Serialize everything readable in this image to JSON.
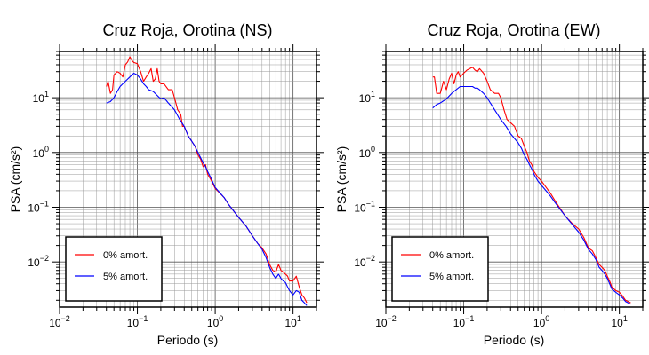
{
  "chart_data": [
    {
      "type": "line",
      "title": "Cruz Roja, Orotina (NS)",
      "xlabel": "Periodo (s)",
      "ylabel": "PSA (cm/s²)",
      "xscale": "log",
      "yscale": "log",
      "xlim": [
        0.01,
        20
      ],
      "ylim": [
        0.0015,
        70
      ],
      "grid": true,
      "legend_position": "lower-left",
      "x_ticks": [
        {
          "base": "10",
          "exp": "−2"
        },
        {
          "base": "10",
          "exp": "−1"
        },
        {
          "base": "10",
          "exp": "0"
        },
        {
          "base": "10",
          "exp": "1"
        }
      ],
      "y_ticks": [
        {
          "base": "10",
          "exp": "−2"
        },
        {
          "base": "10",
          "exp": "−1"
        },
        {
          "base": "10",
          "exp": "0"
        },
        {
          "base": "10",
          "exp": "1"
        }
      ],
      "series": [
        {
          "name": "0% amort.",
          "color": "#ff0000",
          "points": [
            [
              0.04,
              16
            ],
            [
              0.042,
              20
            ],
            [
              0.045,
              12
            ],
            [
              0.048,
              14
            ],
            [
              0.05,
              26
            ],
            [
              0.055,
              30
            ],
            [
              0.06,
              28
            ],
            [
              0.065,
              24
            ],
            [
              0.07,
              40
            ],
            [
              0.075,
              45
            ],
            [
              0.08,
              56
            ],
            [
              0.085,
              48
            ],
            [
              0.09,
              44
            ],
            [
              0.1,
              42
            ],
            [
              0.11,
              30
            ],
            [
              0.12,
              20
            ],
            [
              0.13,
              24
            ],
            [
              0.14,
              28
            ],
            [
              0.15,
              34
            ],
            [
              0.16,
              20
            ],
            [
              0.17,
              22
            ],
            [
              0.18,
              34
            ],
            [
              0.19,
              20
            ],
            [
              0.2,
              18
            ],
            [
              0.22,
              18
            ],
            [
              0.25,
              14
            ],
            [
              0.28,
              14
            ],
            [
              0.3,
              10
            ],
            [
              0.33,
              6
            ],
            [
              0.36,
              5
            ],
            [
              0.38,
              3
            ],
            [
              0.4,
              3
            ],
            [
              0.45,
              2
            ],
            [
              0.5,
              1.6
            ],
            [
              0.55,
              1.3
            ],
            [
              0.6,
              0.9
            ],
            [
              0.65,
              0.75
            ],
            [
              0.7,
              0.55
            ],
            [
              0.75,
              0.6
            ],
            [
              0.8,
              0.4
            ],
            [
              0.9,
              0.3
            ],
            [
              1.0,
              0.22
            ],
            [
              1.3,
              0.15
            ],
            [
              1.5,
              0.11
            ],
            [
              2,
              0.065
            ],
            [
              2.5,
              0.045
            ],
            [
              3,
              0.03
            ],
            [
              3.5,
              0.022
            ],
            [
              4,
              0.018
            ],
            [
              4.5,
              0.014
            ],
            [
              5,
              0.009
            ],
            [
              5.5,
              0.007
            ],
            [
              6,
              0.0065
            ],
            [
              6.5,
              0.009
            ],
            [
              7,
              0.007
            ],
            [
              7.5,
              0.0065
            ],
            [
              8,
              0.006
            ],
            [
              8.5,
              0.0055
            ],
            [
              9,
              0.0045
            ],
            [
              10,
              0.0045
            ],
            [
              11,
              0.0055
            ],
            [
              12,
              0.0035
            ],
            [
              13,
              0.0025
            ],
            [
              14,
              0.0022
            ],
            [
              15,
              0.0018
            ]
          ]
        },
        {
          "name": "5% amort.",
          "color": "#0000ff",
          "points": [
            [
              0.04,
              8
            ],
            [
              0.045,
              8.5
            ],
            [
              0.05,
              10
            ],
            [
              0.055,
              13
            ],
            [
              0.06,
              16
            ],
            [
              0.065,
              18
            ],
            [
              0.07,
              20
            ],
            [
              0.08,
              24
            ],
            [
              0.09,
              28
            ],
            [
              0.1,
              26
            ],
            [
              0.11,
              22
            ],
            [
              0.12,
              18
            ],
            [
              0.13,
              16
            ],
            [
              0.14,
              14
            ],
            [
              0.15,
              13.5
            ],
            [
              0.16,
              13
            ],
            [
              0.18,
              11
            ],
            [
              0.2,
              9.5
            ],
            [
              0.22,
              10
            ],
            [
              0.25,
              8
            ],
            [
              0.3,
              6
            ],
            [
              0.35,
              4
            ],
            [
              0.4,
              3
            ],
            [
              0.45,
              2
            ],
            [
              0.5,
              1.6
            ],
            [
              0.55,
              1.3
            ],
            [
              0.6,
              1.0
            ],
            [
              0.65,
              0.8
            ],
            [
              0.7,
              0.65
            ],
            [
              0.75,
              0.55
            ],
            [
              0.8,
              0.45
            ],
            [
              0.9,
              0.32
            ],
            [
              1.0,
              0.23
            ],
            [
              1.3,
              0.15
            ],
            [
              1.5,
              0.11
            ],
            [
              2,
              0.065
            ],
            [
              2.5,
              0.045
            ],
            [
              3,
              0.03
            ],
            [
              3.5,
              0.022
            ],
            [
              4,
              0.017
            ],
            [
              4.5,
              0.012
            ],
            [
              5,
              0.008
            ],
            [
              5.5,
              0.006
            ],
            [
              6,
              0.005
            ],
            [
              6.5,
              0.006
            ],
            [
              7,
              0.005
            ],
            [
              7.5,
              0.0045
            ],
            [
              8,
              0.0042
            ],
            [
              8.5,
              0.0035
            ],
            [
              9,
              0.003
            ],
            [
              10,
              0.0025
            ],
            [
              11,
              0.003
            ],
            [
              12,
              0.0028
            ],
            [
              13,
              0.002
            ],
            [
              14,
              0.0018
            ],
            [
              15,
              0.0016
            ]
          ]
        }
      ]
    },
    {
      "type": "line",
      "title": "Cruz Roja, Orotina (EW)",
      "xlabel": "Periodo (s)",
      "ylabel": "PSA (cm/s²)",
      "xscale": "log",
      "yscale": "log",
      "xlim": [
        0.01,
        20
      ],
      "ylim": [
        0.0015,
        70
      ],
      "grid": true,
      "legend_position": "lower-left",
      "x_ticks": [
        {
          "base": "10",
          "exp": "−2"
        },
        {
          "base": "10",
          "exp": "−1"
        },
        {
          "base": "10",
          "exp": "0"
        },
        {
          "base": "10",
          "exp": "1"
        }
      ],
      "y_ticks": [
        {
          "base": "10",
          "exp": "−2"
        },
        {
          "base": "10",
          "exp": "−1"
        },
        {
          "base": "10",
          "exp": "0"
        },
        {
          "base": "10",
          "exp": "1"
        }
      ],
      "series": [
        {
          "name": "0% amort.",
          "color": "#ff0000",
          "points": [
            [
              0.04,
              24
            ],
            [
              0.042,
              24
            ],
            [
              0.045,
              12
            ],
            [
              0.05,
              12
            ],
            [
              0.055,
              20
            ],
            [
              0.06,
              14
            ],
            [
              0.065,
              22
            ],
            [
              0.07,
              28
            ],
            [
              0.075,
              18
            ],
            [
              0.08,
              26
            ],
            [
              0.085,
              30
            ],
            [
              0.09,
              24
            ],
            [
              0.1,
              28
            ],
            [
              0.11,
              32
            ],
            [
              0.12,
              34
            ],
            [
              0.13,
              36
            ],
            [
              0.14,
              32
            ],
            [
              0.15,
              30
            ],
            [
              0.16,
              34
            ],
            [
              0.18,
              28
            ],
            [
              0.2,
              20
            ],
            [
              0.22,
              14
            ],
            [
              0.25,
              12
            ],
            [
              0.28,
              12
            ],
            [
              0.3,
              10
            ],
            [
              0.33,
              6
            ],
            [
              0.36,
              4
            ],
            [
              0.4,
              3.5
            ],
            [
              0.45,
              3
            ],
            [
              0.5,
              2
            ],
            [
              0.55,
              1.8
            ],
            [
              0.6,
              1.3
            ],
            [
              0.65,
              1.0
            ],
            [
              0.7,
              0.7
            ],
            [
              0.75,
              0.6
            ],
            [
              0.8,
              0.45
            ],
            [
              0.9,
              0.35
            ],
            [
              1.0,
              0.3
            ],
            [
              1.3,
              0.18
            ],
            [
              1.5,
              0.13
            ],
            [
              2,
              0.07
            ],
            [
              2.5,
              0.05
            ],
            [
              3,
              0.04
            ],
            [
              3.5,
              0.028
            ],
            [
              4,
              0.018
            ],
            [
              4.5,
              0.016
            ],
            [
              5,
              0.012
            ],
            [
              5.5,
              0.009
            ],
            [
              6,
              0.008
            ],
            [
              6.5,
              0.007
            ],
            [
              7,
              0.0055
            ],
            [
              7.5,
              0.0045
            ],
            [
              8,
              0.0035
            ],
            [
              9,
              0.003
            ],
            [
              10,
              0.0028
            ],
            [
              11,
              0.0024
            ],
            [
              12,
              0.002
            ],
            [
              14,
              0.0018
            ]
          ]
        },
        {
          "name": "5% amort.",
          "color": "#0000ff",
          "points": [
            [
              0.04,
              6.5
            ],
            [
              0.045,
              7.5
            ],
            [
              0.05,
              8
            ],
            [
              0.06,
              9.5
            ],
            [
              0.07,
              12
            ],
            [
              0.08,
              14
            ],
            [
              0.09,
              16
            ],
            [
              0.1,
              16
            ],
            [
              0.11,
              16
            ],
            [
              0.12,
              16
            ],
            [
              0.13,
              16
            ],
            [
              0.14,
              15
            ],
            [
              0.15,
              15
            ],
            [
              0.16,
              14
            ],
            [
              0.18,
              12
            ],
            [
              0.2,
              10
            ],
            [
              0.22,
              8
            ],
            [
              0.25,
              6
            ],
            [
              0.3,
              4
            ],
            [
              0.35,
              3
            ],
            [
              0.4,
              2.2
            ],
            [
              0.45,
              1.8
            ],
            [
              0.5,
              1.5
            ],
            [
              0.55,
              1.2
            ],
            [
              0.6,
              0.9
            ],
            [
              0.65,
              0.75
            ],
            [
              0.7,
              0.6
            ],
            [
              0.75,
              0.5
            ],
            [
              0.8,
              0.4
            ],
            [
              0.9,
              0.3
            ],
            [
              1.0,
              0.25
            ],
            [
              1.3,
              0.16
            ],
            [
              1.5,
              0.12
            ],
            [
              2,
              0.07
            ],
            [
              2.5,
              0.048
            ],
            [
              3,
              0.035
            ],
            [
              3.5,
              0.025
            ],
            [
              4,
              0.017
            ],
            [
              4.5,
              0.014
            ],
            [
              5,
              0.011
            ],
            [
              5.5,
              0.008
            ],
            [
              6,
              0.007
            ],
            [
              6.5,
              0.006
            ],
            [
              7,
              0.005
            ],
            [
              7.5,
              0.004
            ],
            [
              8,
              0.0032
            ],
            [
              9,
              0.0028
            ],
            [
              10,
              0.0025
            ],
            [
              11,
              0.0022
            ],
            [
              12,
              0.0019
            ],
            [
              14,
              0.0017
            ]
          ]
        }
      ]
    }
  ]
}
